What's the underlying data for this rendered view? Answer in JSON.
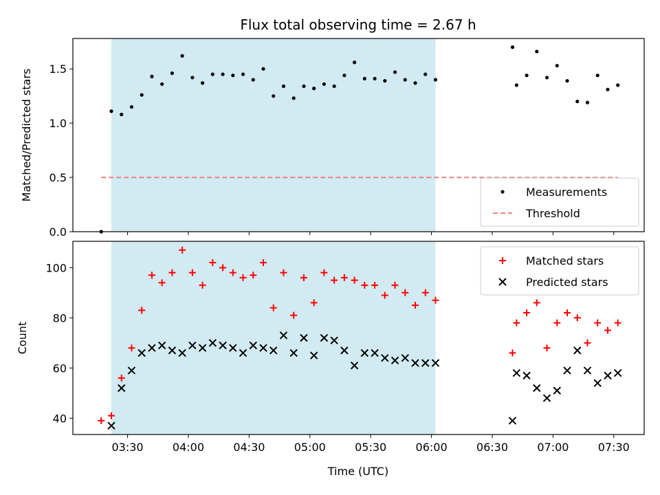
{
  "chart_data": {
    "type": "scatter",
    "title": "Flux total observing time = 2.67 h",
    "xlabel": "Time (UTC)",
    "x_ticks": [
      "03:30",
      "04:00",
      "04:30",
      "05:00",
      "05:30",
      "06:00",
      "06:30",
      "07:00",
      "07:30"
    ],
    "xlim": [
      "03:03",
      "07:45"
    ],
    "shaded_interval": [
      "03:22",
      "06:02"
    ],
    "shade_color": "#add8e6",
    "panels": [
      {
        "ylabel": "Matched/Predicted stars",
        "ylim": [
          0,
          1.78
        ],
        "y_ticks": [
          "0.0",
          "0.5",
          "1.0",
          "1.5"
        ],
        "legend": "bottom-right",
        "series": [
          {
            "name": "Measurements",
            "marker": "dot",
            "color": "#000000",
            "points": [
              [
                "03:17",
                0.0
              ],
              [
                "03:22",
                1.11
              ],
              [
                "03:27",
                1.08
              ],
              [
                "03:32",
                1.15
              ],
              [
                "03:37",
                1.26
              ],
              [
                "03:42",
                1.43
              ],
              [
                "03:47",
                1.36
              ],
              [
                "03:52",
                1.46
              ],
              [
                "03:57",
                1.62
              ],
              [
                "04:02",
                1.42
              ],
              [
                "04:07",
                1.37
              ],
              [
                "04:12",
                1.45
              ],
              [
                "04:17",
                1.45
              ],
              [
                "04:22",
                1.44
              ],
              [
                "04:27",
                1.45
              ],
              [
                "04:32",
                1.4
              ],
              [
                "04:37",
                1.5
              ],
              [
                "04:42",
                1.25
              ],
              [
                "04:47",
                1.34
              ],
              [
                "04:52",
                1.23
              ],
              [
                "04:57",
                1.34
              ],
              [
                "05:02",
                1.32
              ],
              [
                "05:07",
                1.36
              ],
              [
                "05:12",
                1.34
              ],
              [
                "05:17",
                1.44
              ],
              [
                "05:22",
                1.56
              ],
              [
                "05:27",
                1.41
              ],
              [
                "05:32",
                1.41
              ],
              [
                "05:37",
                1.39
              ],
              [
                "05:42",
                1.47
              ],
              [
                "05:47",
                1.4
              ],
              [
                "05:52",
                1.37
              ],
              [
                "05:57",
                1.45
              ],
              [
                "06:02",
                1.4
              ],
              [
                "06:40",
                1.7
              ],
              [
                "06:42",
                1.35
              ],
              [
                "06:47",
                1.44
              ],
              [
                "06:52",
                1.66
              ],
              [
                "06:57",
                1.42
              ],
              [
                "07:02",
                1.53
              ],
              [
                "07:07",
                1.39
              ],
              [
                "07:12",
                1.2
              ],
              [
                "07:17",
                1.19
              ],
              [
                "07:22",
                1.44
              ],
              [
                "07:27",
                1.31
              ],
              [
                "07:32",
                1.35
              ]
            ]
          },
          {
            "name": "Threshold",
            "marker": "dashed-line",
            "color": "#f08080",
            "points": [
              [
                "03:17",
                0.5
              ],
              [
                "07:32",
                0.5
              ]
            ]
          }
        ]
      },
      {
        "ylabel": "Count",
        "ylim": [
          33.5,
          110.5
        ],
        "y_ticks": [
          "40",
          "60",
          "80",
          "100"
        ],
        "legend": "top-right",
        "series": [
          {
            "name": "Matched stars",
            "marker": "plus",
            "color": "#ff0000",
            "points": [
              [
                "03:17",
                39
              ],
              [
                "03:22",
                41
              ],
              [
                "03:27",
                56
              ],
              [
                "03:32",
                68
              ],
              [
                "03:37",
                83
              ],
              [
                "03:42",
                97
              ],
              [
                "03:47",
                94
              ],
              [
                "03:52",
                98
              ],
              [
                "03:57",
                107
              ],
              [
                "04:02",
                98
              ],
              [
                "04:07",
                93
              ],
              [
                "04:12",
                102
              ],
              [
                "04:17",
                100
              ],
              [
                "04:22",
                98
              ],
              [
                "04:27",
                96
              ],
              [
                "04:32",
                97
              ],
              [
                "04:37",
                102
              ],
              [
                "04:42",
                84
              ],
              [
                "04:47",
                98
              ],
              [
                "04:52",
                81
              ],
              [
                "04:57",
                96
              ],
              [
                "05:02",
                86
              ],
              [
                "05:07",
                98
              ],
              [
                "05:12",
                95
              ],
              [
                "05:17",
                96
              ],
              [
                "05:22",
                95
              ],
              [
                "05:27",
                93
              ],
              [
                "05:32",
                93
              ],
              [
                "05:37",
                89
              ],
              [
                "05:42",
                93
              ],
              [
                "05:47",
                90
              ],
              [
                "05:52",
                85
              ],
              [
                "05:57",
                90
              ],
              [
                "06:02",
                87
              ],
              [
                "06:40",
                66
              ],
              [
                "06:42",
                78
              ],
              [
                "06:47",
                82
              ],
              [
                "06:52",
                86
              ],
              [
                "06:57",
                68
              ],
              [
                "07:02",
                78
              ],
              [
                "07:07",
                82
              ],
              [
                "07:12",
                80
              ],
              [
                "07:17",
                70
              ],
              [
                "07:22",
                78
              ],
              [
                "07:27",
                75
              ],
              [
                "07:32",
                78
              ]
            ]
          },
          {
            "name": "Predicted stars",
            "marker": "x",
            "color": "#000000",
            "points": [
              [
                "03:22",
                37
              ],
              [
                "03:27",
                52
              ],
              [
                "03:32",
                59
              ],
              [
                "03:37",
                66
              ],
              [
                "03:42",
                68
              ],
              [
                "03:47",
                69
              ],
              [
                "03:52",
                67
              ],
              [
                "03:57",
                66
              ],
              [
                "04:02",
                69
              ],
              [
                "04:07",
                68
              ],
              [
                "04:12",
                70
              ],
              [
                "04:17",
                69
              ],
              [
                "04:22",
                68
              ],
              [
                "04:27",
                66
              ],
              [
                "04:32",
                69
              ],
              [
                "04:37",
                68
              ],
              [
                "04:42",
                67
              ],
              [
                "04:47",
                73
              ],
              [
                "04:52",
                66
              ],
              [
                "04:57",
                72
              ],
              [
                "05:02",
                65
              ],
              [
                "05:07",
                72
              ],
              [
                "05:12",
                71
              ],
              [
                "05:17",
                67
              ],
              [
                "05:22",
                61
              ],
              [
                "05:27",
                66
              ],
              [
                "05:32",
                66
              ],
              [
                "05:37",
                64
              ],
              [
                "05:42",
                63
              ],
              [
                "05:47",
                64
              ],
              [
                "05:52",
                62
              ],
              [
                "05:57",
                62
              ],
              [
                "06:02",
                62
              ],
              [
                "06:40",
                39
              ],
              [
                "06:42",
                58
              ],
              [
                "06:47",
                57
              ],
              [
                "06:52",
                52
              ],
              [
                "06:57",
                48
              ],
              [
                "07:02",
                51
              ],
              [
                "07:07",
                59
              ],
              [
                "07:12",
                67
              ],
              [
                "07:17",
                59
              ],
              [
                "07:22",
                54
              ],
              [
                "07:27",
                57
              ],
              [
                "07:32",
                58
              ]
            ]
          }
        ]
      }
    ]
  }
}
